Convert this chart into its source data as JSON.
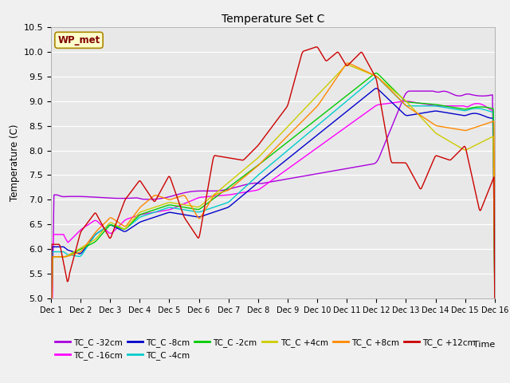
{
  "title": "Temperature Set C",
  "xlabel": "Time",
  "ylabel": "Temperature (C)",
  "ylim": [
    5.0,
    10.5
  ],
  "xtick_labels": [
    "Dec 1",
    "Dec 2",
    "Dec 3",
    "Dec 4",
    "Dec 5",
    "Dec 6",
    "Dec 7",
    "Dec 8",
    "Dec 9",
    "Dec 10",
    "Dec 11",
    "Dec 12",
    "Dec 13",
    "Dec 14",
    "Dec 15",
    "Dec 16"
  ],
  "yticks": [
    5.0,
    5.5,
    6.0,
    6.5,
    7.0,
    7.5,
    8.0,
    8.5,
    9.0,
    9.5,
    10.0,
    10.5
  ],
  "fig_bg": "#f0f0f0",
  "ax_bg": "#e8e8e8",
  "grid_color": "#ffffff",
  "series": [
    {
      "label": "TC_C -32cm",
      "color": "#aa00dd"
    },
    {
      "label": "TC_C -16cm",
      "color": "#ff00ff"
    },
    {
      "label": "TC_C -8cm",
      "color": "#0000cc"
    },
    {
      "label": "TC_C -4cm",
      "color": "#00cccc"
    },
    {
      "label": "TC_C -2cm",
      "color": "#00cc00"
    },
    {
      "label": "TC_C +4cm",
      "color": "#cccc00"
    },
    {
      "label": "TC_C +8cm",
      "color": "#ff8800"
    },
    {
      "label": "TC_C +12cm",
      "color": "#cc0000"
    }
  ],
  "wp_met_box_color": "#ffffcc",
  "wp_met_text_color": "#800000",
  "wp_met_edge_color": "#aa8800"
}
